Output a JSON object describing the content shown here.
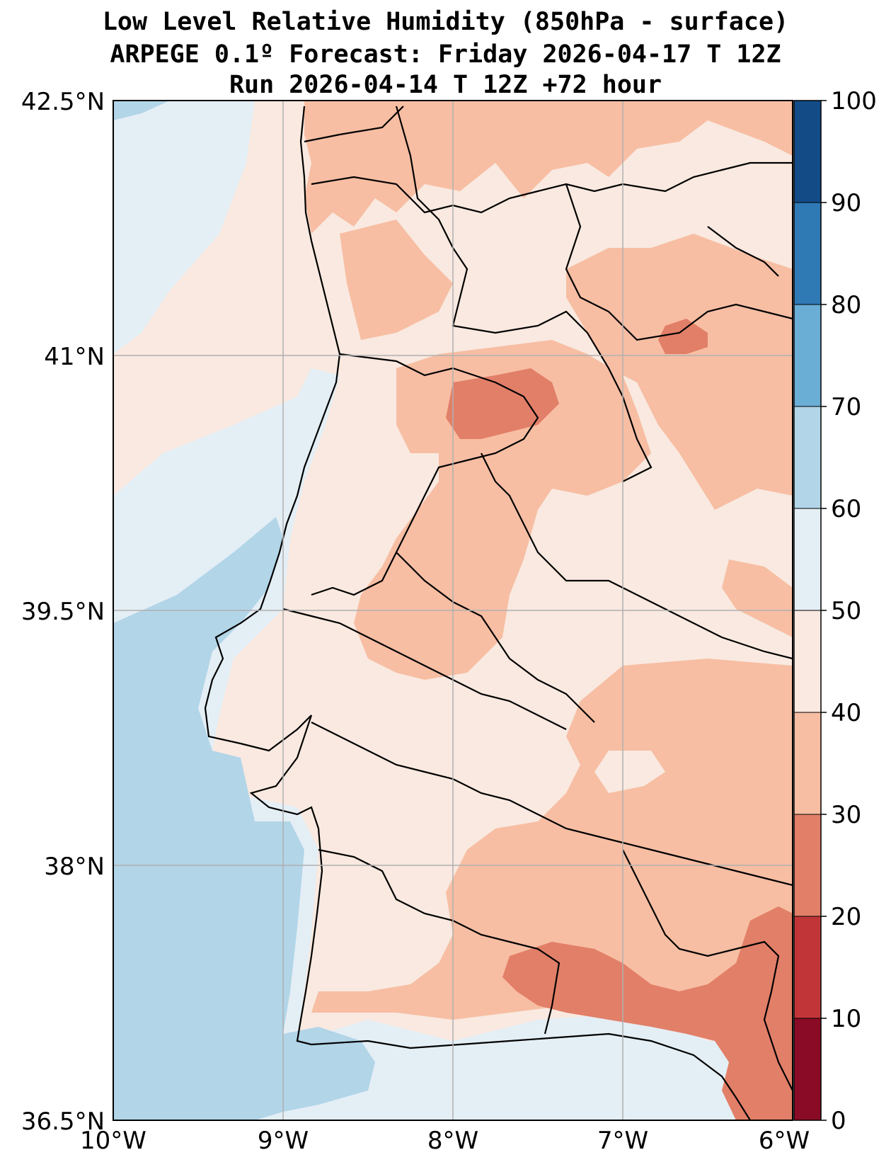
{
  "title": {
    "line1": "Low Level Relative Humidity (850hPa - surface)",
    "line2": "ARPEGE 0.1º Forecast: Friday 2026-04-17 T 12Z",
    "line3": "Run 2026-04-14 T 12Z +72 hour"
  },
  "map": {
    "lat_labels": [
      "42.5°N",
      "41°N",
      "39.5°N",
      "38°N",
      "36.5°N"
    ],
    "lon_labels": [
      "10°W",
      "9°W",
      "8°W",
      "7°W",
      "6°W"
    ]
  },
  "colorbar": {
    "labels": [
      "100",
      "90",
      "80",
      "70",
      "60",
      "50",
      "40",
      "30",
      "20",
      "10",
      "0"
    ],
    "bands": [
      {
        "range": "90-100",
        "color": "#134b87"
      },
      {
        "range": "80-90",
        "color": "#2f79b5"
      },
      {
        "range": "70-80",
        "color": "#6aadd5"
      },
      {
        "range": "60-70",
        "color": "#b2d5e8"
      },
      {
        "range": "50-60",
        "color": "#e4eef5"
      },
      {
        "range": "40-50",
        "color": "#f9e9e0"
      },
      {
        "range": "30-40",
        "color": "#f7bea3"
      },
      {
        "range": "20-30",
        "color": "#e27f68"
      },
      {
        "range": "10-20",
        "color": "#c13539"
      },
      {
        "range": "0-10",
        "color": "#8a0b25"
      }
    ]
  }
}
